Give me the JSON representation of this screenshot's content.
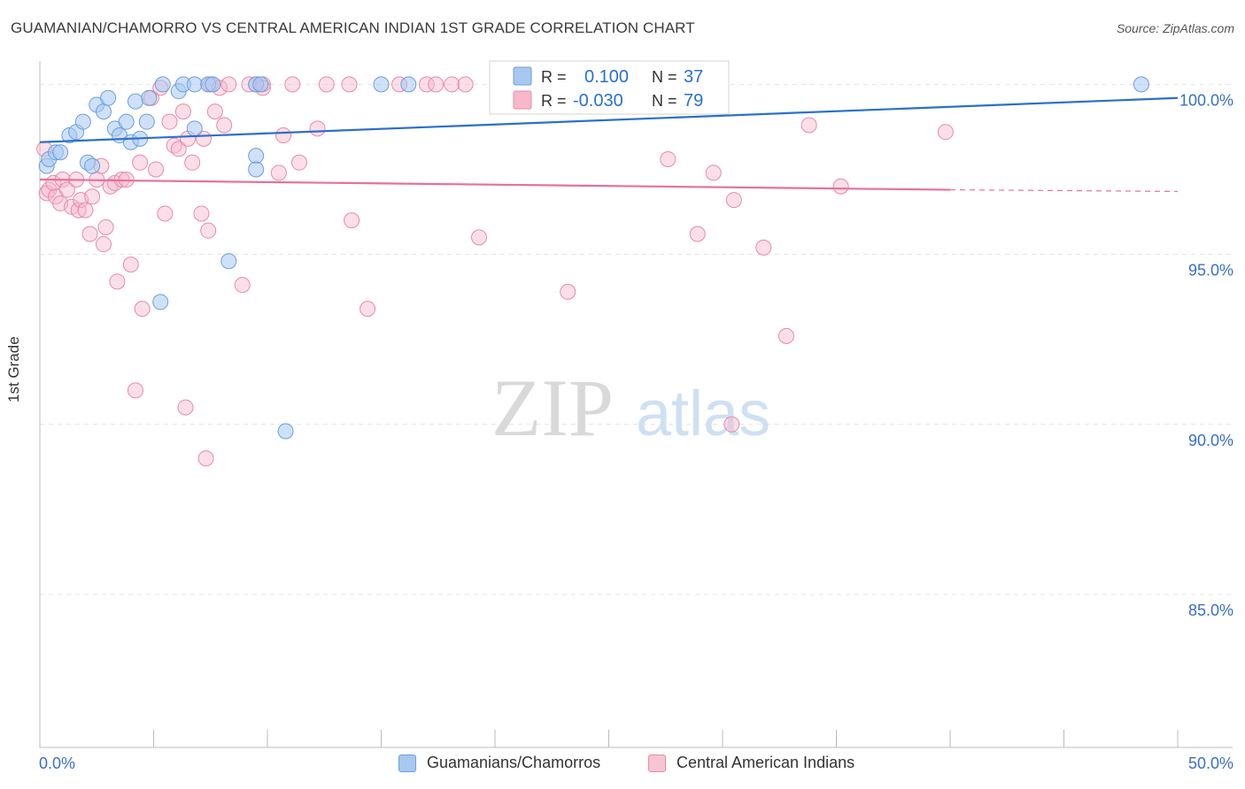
{
  "title": "GUAMANIAN/CHAMORRO VS CENTRAL AMERICAN INDIAN 1ST GRADE CORRELATION CHART",
  "source": "Source: ZipAtlas.com",
  "watermark": {
    "zip": "ZIP",
    "atlas": "atlas"
  },
  "colors": {
    "blue": "#a8c8f0",
    "blue_edge": "#6a9fe0",
    "blue_line": "#2a6fd0",
    "pink": "#f7b8cb",
    "pink_edge": "#e88aa8",
    "pink_line": "#e8709a",
    "axis_text": "#3a6fc8"
  },
  "legend": {
    "r_label": "R =",
    "n_label": "N =",
    "blue": {
      "r": "0.100",
      "n": "37"
    },
    "pink": {
      "r": "-0.030",
      "n": "79"
    }
  },
  "bottom_legend": [
    "Guamanians/Chamorros",
    "Central American Indians"
  ],
  "chart_data": {
    "type": "scatter",
    "title": "GUAMANIAN/CHAMORRO VS CENTRAL AMERICAN INDIAN 1ST GRADE CORRELATION CHART",
    "xlabel": "",
    "ylabel": "1st Grade",
    "xlim": [
      0,
      50
    ],
    "ylim": [
      80.5,
      100.4
    ],
    "x_tick_labels": [
      "0.0%",
      "50.0%"
    ],
    "y_ticks": [
      100,
      95,
      90,
      85
    ],
    "y_tick_labels": [
      "100.0%",
      "95.0%",
      "90.0%",
      "85.0%"
    ],
    "series": [
      {
        "name": "Guamanians/Chamorros",
        "color": "blue",
        "trend": {
          "x": [
            0,
            50
          ],
          "y": [
            98.3,
            99.6
          ]
        },
        "points": [
          [
            0.3,
            97.6
          ],
          [
            0.4,
            97.8
          ],
          [
            0.7,
            98.0
          ],
          [
            0.9,
            98.0
          ],
          [
            1.3,
            98.5
          ],
          [
            1.6,
            98.6
          ],
          [
            1.9,
            98.9
          ],
          [
            2.1,
            97.7
          ],
          [
            2.3,
            97.6
          ],
          [
            2.5,
            99.4
          ],
          [
            2.8,
            99.2
          ],
          [
            3.0,
            99.6
          ],
          [
            3.3,
            98.7
          ],
          [
            3.5,
            98.5
          ],
          [
            3.8,
            98.9
          ],
          [
            4.0,
            98.3
          ],
          [
            4.2,
            99.5
          ],
          [
            4.4,
            98.4
          ],
          [
            4.7,
            98.9
          ],
          [
            4.8,
            99.6
          ],
          [
            5.3,
            93.6
          ],
          [
            5.4,
            100.0
          ],
          [
            6.1,
            99.8
          ],
          [
            6.3,
            100.0
          ],
          [
            6.8,
            100.0
          ],
          [
            6.8,
            98.7
          ],
          [
            7.4,
            100.0
          ],
          [
            7.6,
            100.0
          ],
          [
            8.3,
            94.8
          ],
          [
            9.5,
            100.0
          ],
          [
            9.7,
            100.0
          ],
          [
            9.5,
            97.9
          ],
          [
            9.5,
            97.5
          ],
          [
            10.8,
            89.8
          ],
          [
            15.0,
            100.0
          ],
          [
            16.2,
            100.0
          ],
          [
            48.4,
            100.0
          ]
        ]
      },
      {
        "name": "Central American Indians",
        "color": "pink",
        "trend": {
          "x": [
            0,
            40
          ],
          "y": [
            97.2,
            96.9
          ]
        },
        "trend_dashed": {
          "x": [
            40,
            50
          ],
          "y": [
            96.9,
            96.85
          ]
        },
        "points": [
          [
            0.2,
            98.1
          ],
          [
            0.3,
            96.8
          ],
          [
            0.4,
            96.9
          ],
          [
            0.6,
            97.1
          ],
          [
            0.7,
            96.7
          ],
          [
            0.9,
            96.5
          ],
          [
            1.0,
            97.2
          ],
          [
            1.2,
            96.9
          ],
          [
            1.4,
            96.4
          ],
          [
            1.6,
            97.2
          ],
          [
            1.7,
            96.3
          ],
          [
            1.8,
            96.6
          ],
          [
            2.0,
            96.3
          ],
          [
            2.2,
            95.6
          ],
          [
            2.3,
            96.7
          ],
          [
            2.5,
            97.2
          ],
          [
            2.7,
            97.6
          ],
          [
            2.8,
            95.3
          ],
          [
            2.9,
            95.8
          ],
          [
            3.1,
            97.0
          ],
          [
            3.3,
            97.1
          ],
          [
            3.4,
            94.2
          ],
          [
            3.6,
            97.2
          ],
          [
            3.8,
            97.2
          ],
          [
            4.0,
            94.7
          ],
          [
            4.2,
            91.0
          ],
          [
            4.4,
            97.7
          ],
          [
            4.5,
            93.4
          ],
          [
            4.9,
            99.6
          ],
          [
            5.1,
            97.5
          ],
          [
            5.3,
            99.9
          ],
          [
            5.5,
            96.2
          ],
          [
            5.7,
            98.9
          ],
          [
            5.9,
            98.2
          ],
          [
            6.1,
            98.1
          ],
          [
            6.3,
            99.2
          ],
          [
            6.4,
            90.5
          ],
          [
            6.5,
            98.4
          ],
          [
            6.7,
            97.7
          ],
          [
            7.1,
            96.2
          ],
          [
            7.2,
            98.4
          ],
          [
            7.3,
            89.0
          ],
          [
            7.4,
            95.7
          ],
          [
            7.5,
            100.0
          ],
          [
            7.7,
            99.2
          ],
          [
            7.9,
            99.9
          ],
          [
            8.1,
            98.8
          ],
          [
            8.3,
            100.0
          ],
          [
            8.9,
            94.1
          ],
          [
            9.2,
            100.0
          ],
          [
            9.5,
            100.0
          ],
          [
            9.8,
            100.0
          ],
          [
            9.8,
            99.9
          ],
          [
            10.5,
            97.4
          ],
          [
            10.7,
            98.5
          ],
          [
            11.1,
            100.0
          ],
          [
            11.4,
            97.7
          ],
          [
            12.2,
            98.7
          ],
          [
            12.6,
            100.0
          ],
          [
            13.6,
            100.0
          ],
          [
            13.7,
            96.0
          ],
          [
            14.4,
            93.4
          ],
          [
            15.8,
            100.0
          ],
          [
            17.0,
            100.0
          ],
          [
            17.4,
            100.0
          ],
          [
            18.1,
            100.0
          ],
          [
            18.7,
            100.0
          ],
          [
            19.3,
            95.5
          ],
          [
            23.2,
            93.9
          ],
          [
            27.6,
            97.8
          ],
          [
            28.9,
            95.6
          ],
          [
            29.6,
            97.4
          ],
          [
            30.4,
            90.0
          ],
          [
            30.5,
            96.6
          ],
          [
            31.8,
            95.2
          ],
          [
            32.8,
            92.6
          ],
          [
            33.8,
            98.8
          ],
          [
            35.2,
            97.0
          ],
          [
            39.8,
            98.6
          ]
        ]
      }
    ]
  }
}
